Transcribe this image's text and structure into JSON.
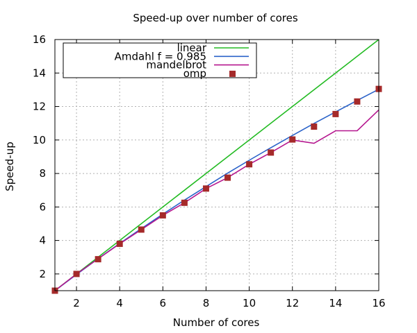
{
  "chart_data": {
    "type": "line",
    "title": "Speed-up over number of cores",
    "xlabel": "Number of cores",
    "ylabel": "Speed-up",
    "xlim": [
      1,
      16
    ],
    "ylim": [
      1,
      16
    ],
    "xticks": [
      2,
      4,
      6,
      8,
      10,
      12,
      14,
      16
    ],
    "yticks": [
      2,
      4,
      6,
      8,
      10,
      12,
      14,
      16
    ],
    "grid": true,
    "legend_position": "top-left",
    "series": [
      {
        "name": "linear",
        "kind": "line",
        "color": "#22bb22",
        "x": [
          1,
          16
        ],
        "y": [
          1,
          16
        ]
      },
      {
        "name": "Amdahl f = 0.985",
        "kind": "line",
        "color": "#2a62c9",
        "x": [
          1,
          2,
          3,
          4,
          5,
          6,
          7,
          8,
          9,
          10,
          11,
          12,
          13,
          14,
          15,
          16
        ],
        "y": [
          1.0,
          1.97,
          2.91,
          3.82,
          4.71,
          5.57,
          6.41,
          7.22,
          8.02,
          8.79,
          9.54,
          10.27,
          10.99,
          11.68,
          12.36,
          13.03
        ]
      },
      {
        "name": "mandelbrot",
        "kind": "line",
        "color": "#b5168e",
        "x": [
          1,
          2,
          3,
          4,
          5,
          6,
          7,
          8,
          9,
          10,
          11,
          12,
          13,
          14,
          15,
          16
        ],
        "y": [
          1.0,
          2.0,
          2.9,
          3.8,
          4.65,
          5.5,
          6.25,
          7.1,
          7.75,
          8.55,
          9.25,
          10.0,
          9.8,
          10.55,
          10.55,
          11.8
        ]
      },
      {
        "name": "omp",
        "kind": "points",
        "color": "#a52a2a",
        "x": [
          1,
          2,
          3,
          4,
          5,
          6,
          7,
          8,
          9,
          10,
          11,
          12,
          13,
          14,
          15,
          16
        ],
        "y": [
          1.0,
          2.0,
          2.88,
          3.8,
          4.65,
          5.5,
          6.25,
          7.1,
          7.75,
          8.55,
          9.25,
          10.03,
          10.8,
          11.55,
          12.3,
          13.05
        ]
      }
    ]
  }
}
